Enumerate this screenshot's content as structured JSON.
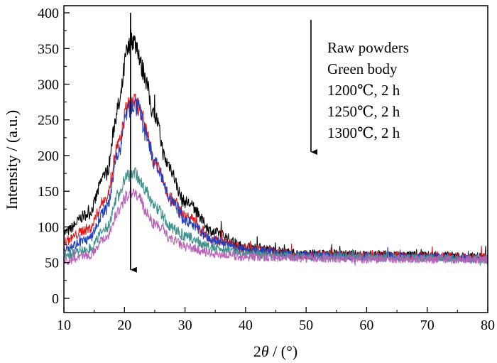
{
  "chart_data": {
    "type": "line",
    "xlabel_prefix": "2",
    "xlabel_theta": "θ",
    "xlabel_suffix": " / (°)",
    "ylabel": "Intensity / (a.u.)",
    "xlim": [
      10,
      80
    ],
    "ylim": [
      -20,
      410
    ],
    "x_ticks": [
      10,
      20,
      30,
      40,
      50,
      60,
      70,
      80
    ],
    "y_ticks": [
      0,
      50,
      100,
      150,
      200,
      250,
      300,
      350,
      400
    ],
    "legend": [
      "Raw powders",
      "Green body",
      "1200℃, 2 h",
      "1250℃, 2 h",
      "1300℃, 2 h"
    ],
    "grid": false,
    "series": [
      {
        "name": "Raw powders",
        "color": "#000000",
        "peak_x": 21.2,
        "peak_y": 365,
        "baseline": 58,
        "points": [
          [
            10,
            92
          ],
          [
            14,
            118
          ],
          [
            17,
            175
          ],
          [
            19,
            268
          ],
          [
            20.5,
            345
          ],
          [
            21.2,
            365
          ],
          [
            22,
            355
          ],
          [
            23,
            320
          ],
          [
            25,
            255
          ],
          [
            27,
            190
          ],
          [
            30,
            135
          ],
          [
            35,
            92
          ],
          [
            40,
            72
          ],
          [
            50,
            62
          ],
          [
            60,
            61
          ],
          [
            70,
            60
          ],
          [
            80,
            58
          ]
        ]
      },
      {
        "name": "Green body",
        "color": "#e41a1c",
        "peak_x": 21.3,
        "peak_y": 278,
        "baseline": 57,
        "points": [
          [
            10,
            80
          ],
          [
            14,
            97
          ],
          [
            17,
            140
          ],
          [
            19,
            215
          ],
          [
            20.5,
            268
          ],
          [
            21.3,
            278
          ],
          [
            22.2,
            270
          ],
          [
            23.5,
            235
          ],
          [
            25,
            190
          ],
          [
            28,
            138
          ],
          [
            30,
            115
          ],
          [
            35,
            82
          ],
          [
            40,
            70
          ],
          [
            50,
            61
          ],
          [
            60,
            60
          ],
          [
            70,
            59
          ],
          [
            80,
            57
          ]
        ]
      },
      {
        "name": "1200℃, 2 h",
        "color": "#1f3fbf",
        "peak_x": 21.4,
        "peak_y": 272,
        "baseline": 56,
        "points": [
          [
            10,
            70
          ],
          [
            14,
            82
          ],
          [
            17,
            125
          ],
          [
            19,
            205
          ],
          [
            20.5,
            262
          ],
          [
            21.4,
            272
          ],
          [
            22.3,
            265
          ],
          [
            23.5,
            232
          ],
          [
            25,
            188
          ],
          [
            28,
            134
          ],
          [
            30,
            108
          ],
          [
            35,
            80
          ],
          [
            40,
            68
          ],
          [
            50,
            60
          ],
          [
            60,
            59
          ],
          [
            70,
            58
          ],
          [
            80,
            56
          ]
        ]
      },
      {
        "name": "1250℃, 2 h",
        "color": "#3f8f8a",
        "peak_x": 21.3,
        "peak_y": 178,
        "baseline": 55,
        "points": [
          [
            10,
            60
          ],
          [
            14,
            68
          ],
          [
            17,
            98
          ],
          [
            19,
            145
          ],
          [
            20.5,
            172
          ],
          [
            21.3,
            178
          ],
          [
            22.3,
            170
          ],
          [
            23.5,
            150
          ],
          [
            25,
            128
          ],
          [
            28,
            98
          ],
          [
            30,
            86
          ],
          [
            35,
            70
          ],
          [
            40,
            62
          ],
          [
            50,
            58
          ],
          [
            60,
            57
          ],
          [
            70,
            56
          ],
          [
            80,
            55
          ]
        ]
      },
      {
        "name": "1300℃, 2 h",
        "color": "#b864b8",
        "peak_x": 21.3,
        "peak_y": 150,
        "baseline": 54,
        "points": [
          [
            10,
            52
          ],
          [
            14,
            60
          ],
          [
            17,
            86
          ],
          [
            19,
            122
          ],
          [
            20.5,
            145
          ],
          [
            21.3,
            150
          ],
          [
            22.3,
            142
          ],
          [
            23.5,
            122
          ],
          [
            25,
            104
          ],
          [
            28,
            82
          ],
          [
            30,
            72
          ],
          [
            35,
            62
          ],
          [
            40,
            58
          ],
          [
            50,
            56
          ],
          [
            60,
            55
          ],
          [
            70,
            55
          ],
          [
            80,
            54
          ]
        ]
      }
    ],
    "annotations": [
      {
        "type": "arrow",
        "from": [
          21,
          400
        ],
        "to": [
          21,
          40
        ]
      },
      {
        "type": "arrow",
        "from": [
          50.8,
          390
        ],
        "to": [
          50.8,
          205
        ]
      }
    ]
  }
}
